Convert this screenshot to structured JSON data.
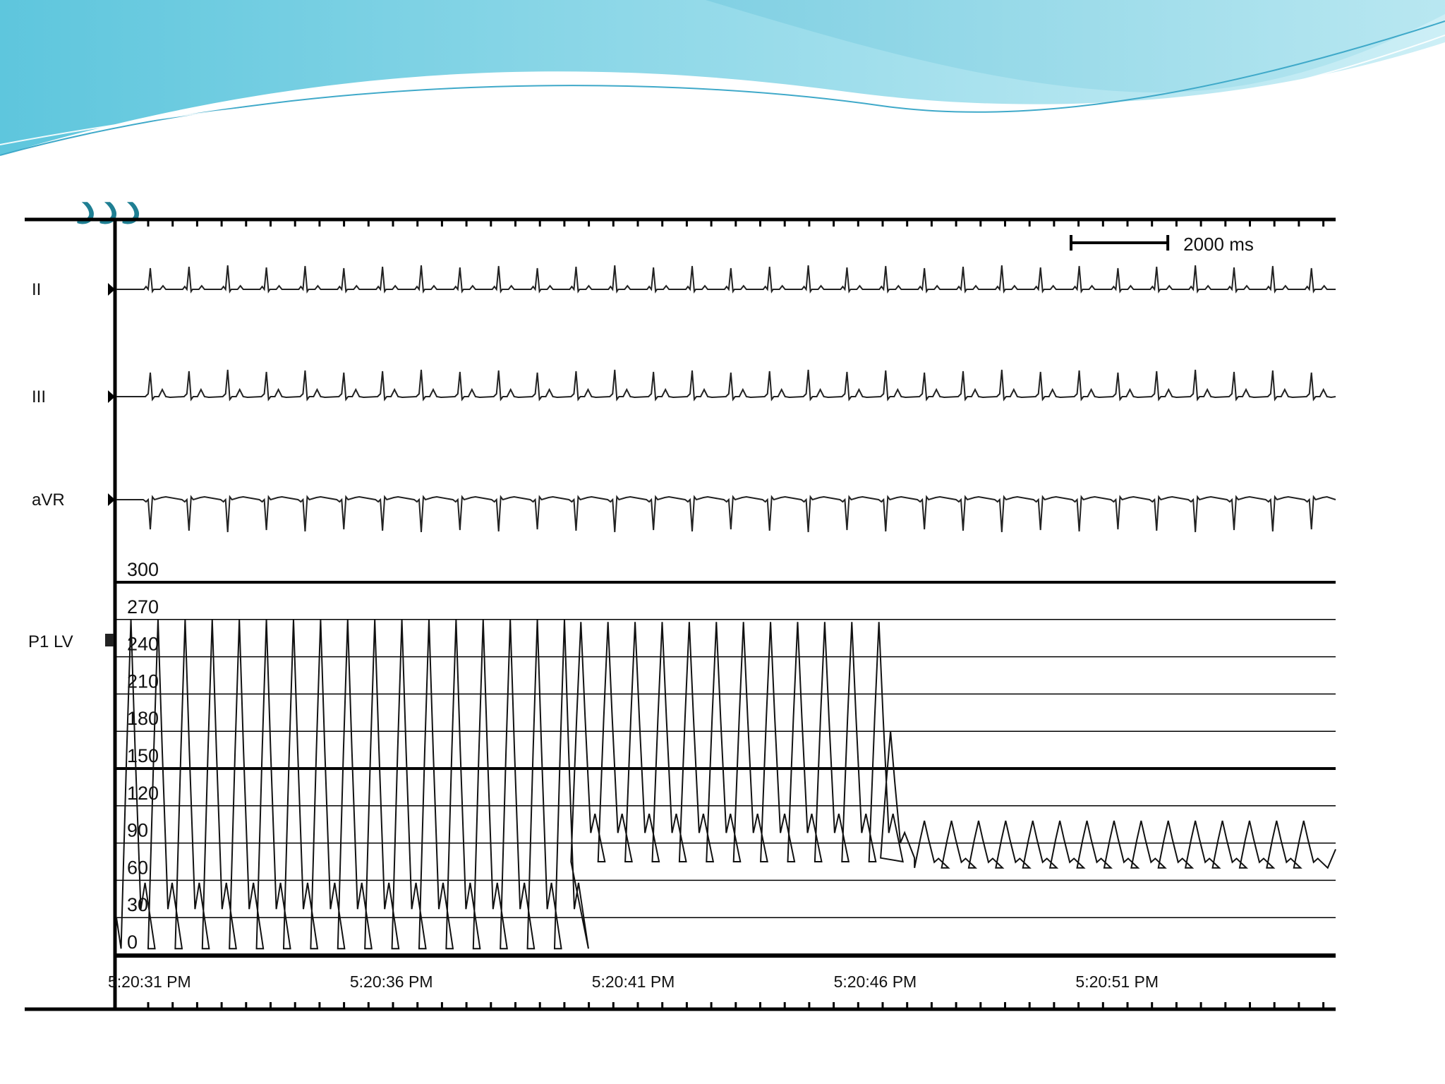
{
  "slide": {
    "title": "ددد",
    "colors": {
      "wave_dark": "#3fa9c9",
      "wave_light": "#9fdcec",
      "title": "#1f7f93"
    }
  },
  "chart_data": {
    "type": "line",
    "scale_bar": {
      "label": "2000 ms",
      "duration_ms": 2000
    },
    "time_axis": {
      "tick_labels": [
        "5:20:31 PM",
        "5:20:36 PM",
        "5:20:41 PM",
        "5:20:46 PM",
        "5:20:51 PM"
      ],
      "tick_seconds": [
        31,
        36,
        41,
        46,
        51
      ],
      "range_seconds": [
        30.3,
        55.5
      ]
    },
    "leads": [
      {
        "label": "II",
        "waveform": "upright QRS spikes"
      },
      {
        "label": "III",
        "waveform": "upright QRS spikes with small T waves"
      },
      {
        "label": "aVR",
        "waveform": "inverted QRS spikes"
      }
    ],
    "beat_times_seconds": [
      31.0,
      31.8,
      32.6,
      33.4,
      34.2,
      35.0,
      35.8,
      36.6,
      37.4,
      38.2,
      39.0,
      39.8,
      40.6,
      41.4,
      42.2,
      43.0,
      43.8,
      44.6,
      45.4,
      46.2,
      47.0,
      47.8,
      48.6,
      49.4,
      50.2,
      51.0,
      51.8,
      52.6,
      53.4,
      54.2,
      55.0
    ],
    "pressure": {
      "label": "P1 LV",
      "y_tick_labels": [
        "300",
        "270",
        "240",
        "210",
        "180",
        "150",
        "120",
        "90",
        "60",
        "30",
        "0"
      ],
      "y_ticks": [
        300,
        270,
        240,
        210,
        180,
        150,
        120,
        90,
        60,
        30,
        0
      ],
      "ylim": [
        0,
        300
      ],
      "phases": [
        {
          "from_s": 30.3,
          "to_s": 39.6,
          "systolic_mmHg": 270,
          "diastolic_mmHg": 5
        },
        {
          "from_s": 39.6,
          "to_s": 46.1,
          "systolic_mmHg": 268,
          "diastolic_mmHg": 75
        },
        {
          "from_s": 46.1,
          "to_s": 46.9,
          "systolic_mmHg": 180,
          "diastolic_mmHg": 78
        },
        {
          "from_s": 46.9,
          "to_s": 55.5,
          "systolic_mmHg": 108,
          "diastolic_mmHg": 70
        }
      ]
    }
  }
}
